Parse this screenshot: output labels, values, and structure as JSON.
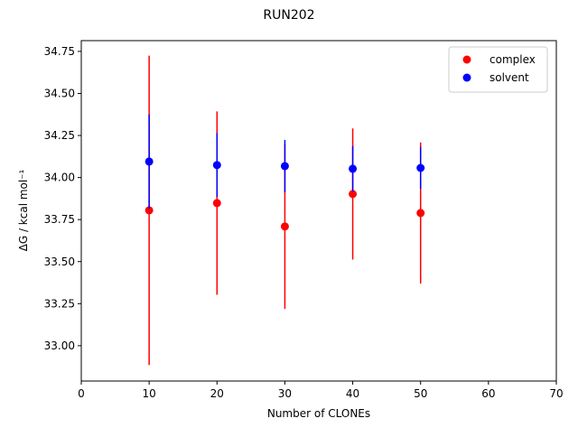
{
  "chart_data": {
    "type": "scatter",
    "title": "RUN202",
    "x_label": "Number of CLONEs",
    "y_label": "ΔG / kcal mol⁻¹",
    "x": [
      10,
      20,
      30,
      40,
      50
    ],
    "series": [
      {
        "name": "complex",
        "color": "#ff0000",
        "values": [
          33.805,
          33.848,
          33.709,
          33.902,
          33.789
        ],
        "errors": [
          0.92,
          0.545,
          0.49,
          0.39,
          0.42
        ]
      },
      {
        "name": "solvent",
        "color": "#0000ff",
        "values": [
          34.095,
          34.074,
          34.068,
          34.052,
          34.057
        ],
        "errors": [
          0.28,
          0.19,
          0.155,
          0.135,
          0.125
        ]
      }
    ],
    "xlim": [
      0,
      70
    ],
    "ylim": [
      32.79,
      34.814
    ],
    "xticks": [
      0,
      10,
      20,
      30,
      40,
      50,
      60,
      70
    ],
    "yticks": [
      {
        "value": 33.0,
        "label": "33.00"
      },
      33.25,
      {
        "value": 33.5,
        "label": "33.50"
      },
      33.75,
      {
        "value": 34.0,
        "label": "34.00"
      },
      34.25,
      {
        "value": 34.5,
        "label": "34.50"
      },
      34.75
    ],
    "legend": "upper right",
    "grid": false
  }
}
